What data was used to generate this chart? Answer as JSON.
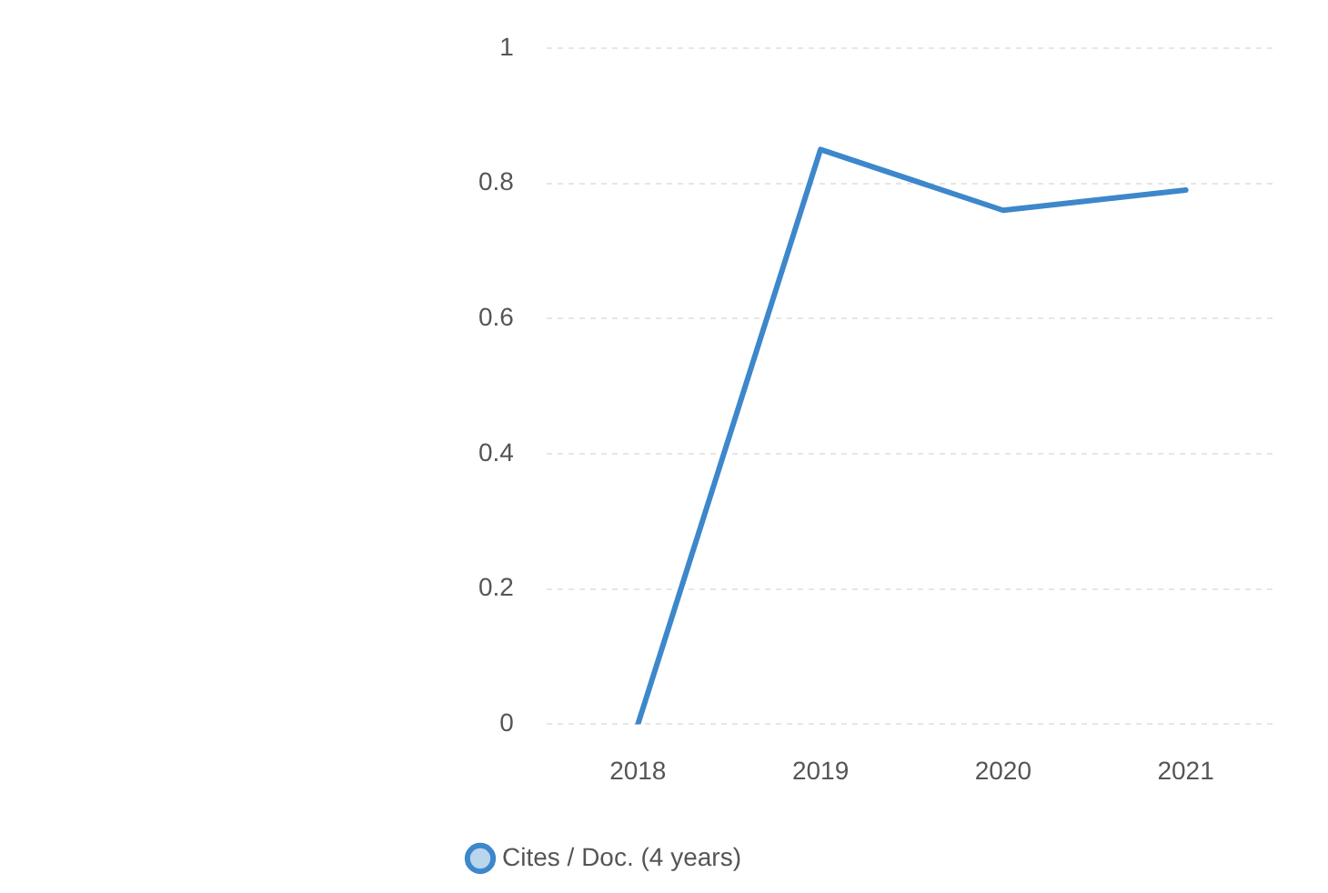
{
  "chart_data": {
    "type": "line",
    "categories": [
      "2018",
      "2019",
      "2020",
      "2021"
    ],
    "series": [
      {
        "name": "Cites / Doc. (4 years)",
        "color": "#3d87cb",
        "values": [
          0,
          0.85,
          0.76,
          0.79
        ]
      }
    ],
    "ylim": [
      0,
      1
    ],
    "yticks": [
      0,
      0.2,
      0.4,
      0.6,
      0.8,
      1
    ],
    "grid": "y",
    "legend": "bottom left",
    "marker": "none"
  }
}
